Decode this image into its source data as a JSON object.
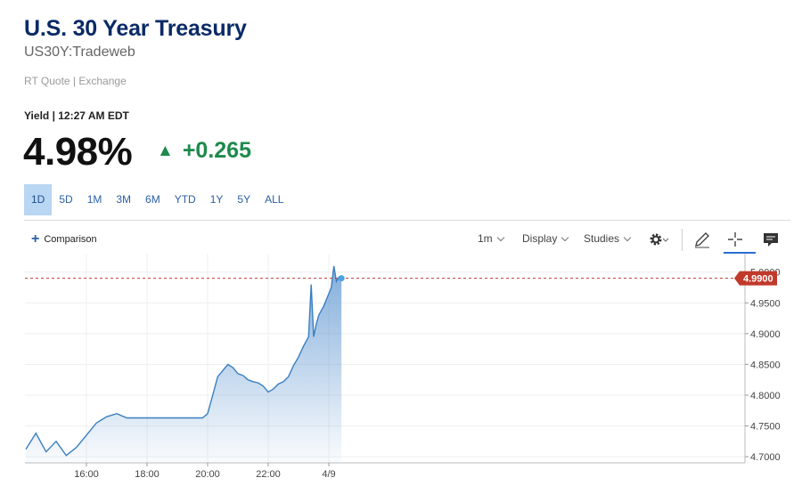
{
  "header": {
    "title": "U.S. 30 Year Treasury",
    "symbol": "US30Y:Tradeweb",
    "quote_type": "RT Quote | Exchange",
    "yield_label": "Yield | 12:27 AM EDT",
    "price": "4.98%",
    "change": "+0.265",
    "up_color": "#1e8a4c"
  },
  "ranges": [
    {
      "label": "1D",
      "active": true
    },
    {
      "label": "5D",
      "active": false
    },
    {
      "label": "1M",
      "active": false
    },
    {
      "label": "3M",
      "active": false
    },
    {
      "label": "6M",
      "active": false
    },
    {
      "label": "YTD",
      "active": false
    },
    {
      "label": "1Y",
      "active": false
    },
    {
      "label": "5Y",
      "active": false
    },
    {
      "label": "ALL",
      "active": false
    }
  ],
  "toolbar": {
    "comparison": "Comparison",
    "interval": "1m",
    "display": "Display",
    "studies": "Studies",
    "icons": [
      "gear-icon",
      "pencil-icon",
      "crosshair-icon",
      "comment-icon"
    ]
  },
  "chart_data": {
    "type": "area",
    "x_ticks": [
      "16:00",
      "18:00",
      "20:00",
      "22:00",
      "4/9"
    ],
    "y_ticks": [
      "4.7000",
      "4.7500",
      "4.8000",
      "4.8500",
      "4.9000",
      "4.9500",
      "5.0000"
    ],
    "ylim": [
      4.69,
      5.03
    ],
    "last_value_label": "4.9900",
    "last_value": 4.99,
    "line_color": "#3a7fc1",
    "marker_color": "#c0392b",
    "grid": true,
    "series": [
      {
        "x": [
          "14:00",
          "14:20",
          "14:40",
          "15:00",
          "15:20",
          "15:40",
          "16:00",
          "16:20",
          "16:40",
          "17:00",
          "17:20",
          "17:40",
          "18:00",
          "18:30",
          "19:00",
          "19:30",
          "19:50",
          "20:00",
          "20:10",
          "20:20",
          "20:30",
          "20:40",
          "20:50",
          "21:00",
          "21:10",
          "21:20",
          "21:30",
          "21:40",
          "21:50",
          "22:00",
          "22:10",
          "22:20",
          "22:30",
          "22:40",
          "22:50",
          "23:00",
          "23:10",
          "23:20",
          "23:25",
          "23:30",
          "23:35",
          "23:40",
          "23:50",
          "00:00",
          "00:05",
          "00:10",
          "00:15",
          "00:20",
          "00:25"
        ],
        "values": [
          4.712,
          4.738,
          4.708,
          4.725,
          4.702,
          4.715,
          4.735,
          4.755,
          4.765,
          4.77,
          4.763,
          4.763,
          4.763,
          4.763,
          4.763,
          4.763,
          4.763,
          4.77,
          4.8,
          4.83,
          4.84,
          4.85,
          4.845,
          4.835,
          4.832,
          4.825,
          4.822,
          4.82,
          4.815,
          4.805,
          4.81,
          4.818,
          4.822,
          4.83,
          4.848,
          4.862,
          4.88,
          4.895,
          4.98,
          4.895,
          4.915,
          4.93,
          4.945,
          4.965,
          4.975,
          5.01,
          4.985,
          4.992,
          4.99
        ]
      }
    ]
  }
}
